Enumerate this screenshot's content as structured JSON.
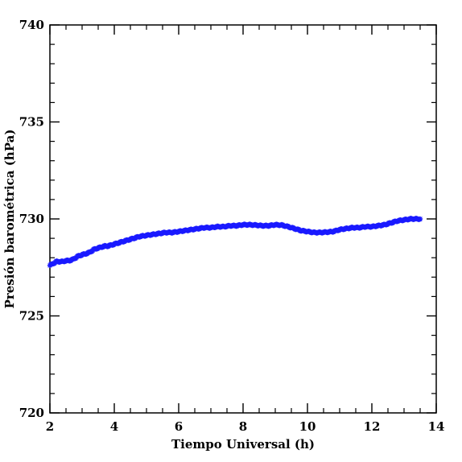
{
  "chart_data": {
    "type": "scatter",
    "title": "",
    "xlabel": "Tiempo Universal (h)",
    "ylabel": "Presión barométrica (hPa)",
    "xlim": [
      2,
      14
    ],
    "ylim": [
      720,
      740
    ],
    "x_ticks": [
      2,
      4,
      6,
      8,
      10,
      12,
      14
    ],
    "y_ticks": [
      720,
      725,
      730,
      735,
      740
    ],
    "x_minor_step": 0.5,
    "y_minor_step": 1,
    "grid": false,
    "marker": "star",
    "series_color": "#1a1aff",
    "series": [
      {
        "x": [
          2.0,
          2.1,
          2.2,
          2.3,
          2.4,
          2.5,
          2.6,
          2.7,
          2.8,
          2.9,
          3.0,
          3.1,
          3.2,
          3.3,
          3.4,
          3.5,
          3.6,
          3.7,
          3.8,
          3.9,
          4.0,
          4.2,
          4.4,
          4.6,
          4.8,
          5.0,
          5.2,
          5.4,
          5.6,
          5.8,
          6.0,
          6.2,
          6.4,
          6.6,
          6.8,
          7.0,
          7.2,
          7.4,
          7.6,
          7.8,
          8.0,
          8.2,
          8.4,
          8.6,
          8.8,
          9.0,
          9.2,
          9.4,
          9.6,
          9.8,
          10.0,
          10.2,
          10.4,
          10.6,
          10.8,
          11.0,
          11.2,
          11.4,
          11.6,
          11.8,
          12.0,
          12.2,
          12.4,
          12.6,
          12.8,
          13.0,
          13.2,
          13.4,
          13.5
        ],
        "y": [
          727.6,
          727.7,
          727.8,
          727.8,
          727.8,
          727.85,
          727.85,
          727.9,
          728.0,
          728.1,
          728.15,
          728.2,
          728.25,
          728.35,
          728.45,
          728.5,
          728.55,
          728.6,
          728.6,
          728.65,
          728.7,
          728.8,
          728.9,
          729.0,
          729.1,
          729.15,
          729.2,
          729.25,
          729.3,
          729.3,
          729.35,
          729.4,
          729.45,
          729.5,
          729.55,
          729.55,
          729.6,
          729.6,
          729.65,
          729.65,
          729.7,
          729.7,
          729.68,
          729.65,
          729.65,
          729.7,
          729.68,
          729.6,
          729.5,
          729.4,
          729.35,
          729.3,
          729.3,
          729.32,
          729.35,
          729.45,
          729.5,
          729.55,
          729.55,
          729.6,
          729.6,
          729.65,
          729.7,
          729.8,
          729.9,
          729.95,
          730.0,
          730.0,
          730.0
        ]
      }
    ]
  }
}
